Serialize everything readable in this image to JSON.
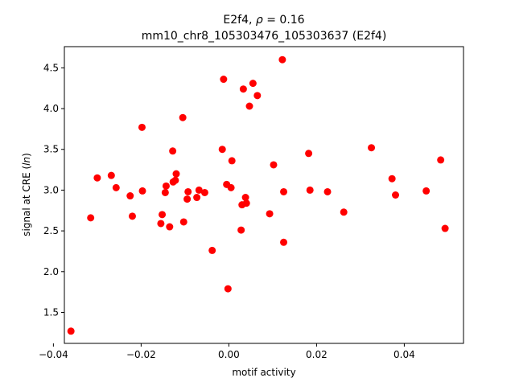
{
  "chart_data": {
    "type": "scatter",
    "title_line1": "E2f4, ρ = 0.16",
    "title_line2": "mm10_chr8_105303476_105303637 (E2f4)",
    "xlabel": "motif activity",
    "ylabel": "signal at CRE (ln)",
    "xlim": [
      -0.0375,
      0.0535
    ],
    "ylim": [
      1.12,
      4.76
    ],
    "xticks": [
      -0.04,
      -0.02,
      0.0,
      0.02,
      0.04
    ],
    "xtick_labels": [
      "−0.04",
      "−0.02",
      "0.00",
      "0.02",
      "0.04"
    ],
    "yticks": [
      1.5,
      2.0,
      2.5,
      3.0,
      3.5,
      4.0,
      4.5
    ],
    "ytick_labels": [
      "1.5",
      "2.0",
      "2.5",
      "3.0",
      "3.5",
      "4.0",
      "4.5"
    ],
    "marker_color": "#ff0000",
    "grid": false,
    "points": [
      {
        "x": -0.036,
        "y": 1.27
      },
      {
        "x": -0.0315,
        "y": 2.66
      },
      {
        "x": -0.03,
        "y": 3.15
      },
      {
        "x": -0.0268,
        "y": 3.18
      },
      {
        "x": -0.0257,
        "y": 3.03
      },
      {
        "x": -0.0225,
        "y": 2.93
      },
      {
        "x": -0.022,
        "y": 2.68
      },
      {
        "x": -0.0198,
        "y": 3.77
      },
      {
        "x": -0.0197,
        "y": 2.99
      },
      {
        "x": -0.0155,
        "y": 2.59
      },
      {
        "x": -0.0152,
        "y": 2.7
      },
      {
        "x": -0.0145,
        "y": 2.97
      },
      {
        "x": -0.0143,
        "y": 3.05
      },
      {
        "x": -0.0135,
        "y": 2.55
      },
      {
        "x": -0.0128,
        "y": 3.48
      },
      {
        "x": -0.0127,
        "y": 3.1
      },
      {
        "x": -0.0122,
        "y": 3.12
      },
      {
        "x": -0.012,
        "y": 3.2
      },
      {
        "x": -0.0105,
        "y": 3.89
      },
      {
        "x": -0.0103,
        "y": 2.61
      },
      {
        "x": -0.0095,
        "y": 2.89
      },
      {
        "x": -0.0093,
        "y": 2.98
      },
      {
        "x": -0.0073,
        "y": 2.91
      },
      {
        "x": -0.0068,
        "y": 3.0
      },
      {
        "x": -0.0055,
        "y": 2.97
      },
      {
        "x": -0.0038,
        "y": 2.26
      },
      {
        "x": -0.0015,
        "y": 3.5
      },
      {
        "x": -0.0012,
        "y": 4.36
      },
      {
        "x": -0.0005,
        "y": 3.07
      },
      {
        "x": -0.0002,
        "y": 1.79
      },
      {
        "x": 0.0005,
        "y": 3.03
      },
      {
        "x": 0.0007,
        "y": 3.36
      },
      {
        "x": 0.0028,
        "y": 2.51
      },
      {
        "x": 0.003,
        "y": 2.82
      },
      {
        "x": 0.0033,
        "y": 4.24
      },
      {
        "x": 0.0038,
        "y": 2.91
      },
      {
        "x": 0.004,
        "y": 2.84
      },
      {
        "x": 0.0047,
        "y": 4.03
      },
      {
        "x": 0.0055,
        "y": 4.31
      },
      {
        "x": 0.0065,
        "y": 4.16
      },
      {
        "x": 0.0093,
        "y": 2.71
      },
      {
        "x": 0.0102,
        "y": 3.31
      },
      {
        "x": 0.0122,
        "y": 4.6
      },
      {
        "x": 0.0125,
        "y": 2.98
      },
      {
        "x": 0.0125,
        "y": 2.36
      },
      {
        "x": 0.0182,
        "y": 3.45
      },
      {
        "x": 0.0185,
        "y": 3.0
      },
      {
        "x": 0.0225,
        "y": 2.98
      },
      {
        "x": 0.0262,
        "y": 2.73
      },
      {
        "x": 0.0325,
        "y": 3.52
      },
      {
        "x": 0.0372,
        "y": 3.14
      },
      {
        "x": 0.038,
        "y": 2.94
      },
      {
        "x": 0.045,
        "y": 2.99
      },
      {
        "x": 0.0483,
        "y": 3.37
      },
      {
        "x": 0.0493,
        "y": 2.53
      }
    ]
  }
}
